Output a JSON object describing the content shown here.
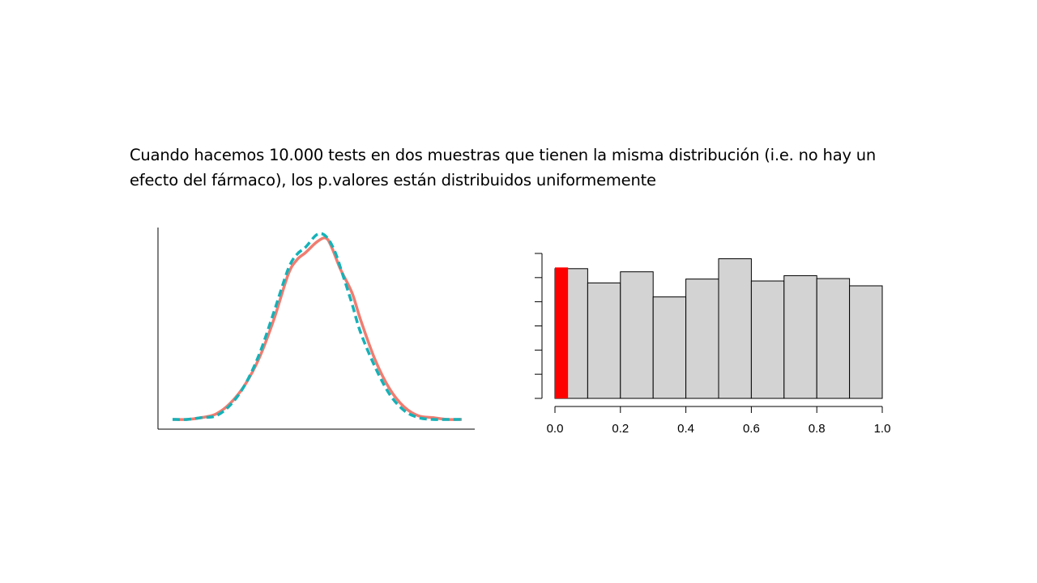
{
  "slide": {
    "caption": "Cuando hacemos 10.000 tests en dos muestras que tienen la misma distribución (i.e. no hay un efecto del fármaco), los p.valores están distribuidos uniformemente"
  },
  "chart_data": [
    {
      "type": "line",
      "title": "",
      "xlabel": "",
      "ylabel": "",
      "axes_ticks": false,
      "x_range": [
        0,
        1
      ],
      "y_range": [
        0,
        1
      ],
      "series": [
        {
          "color": "#f07c70",
          "style": "solid",
          "x": [
            0.0,
            0.05,
            0.1,
            0.15,
            0.2,
            0.25,
            0.3,
            0.35,
            0.4,
            0.43,
            0.46,
            0.5,
            0.53,
            0.55,
            0.58,
            0.62,
            0.65,
            0.7,
            0.75,
            0.8,
            0.85,
            0.9,
            0.95,
            1.0
          ],
          "y": [
            0.0,
            0.0,
            0.01,
            0.03,
            0.09,
            0.19,
            0.34,
            0.55,
            0.8,
            0.88,
            0.92,
            0.98,
            1.0,
            0.95,
            0.83,
            0.7,
            0.55,
            0.33,
            0.17,
            0.07,
            0.02,
            0.01,
            0.0,
            0.0
          ]
        },
        {
          "color": "#14b2b8",
          "style": "dashed",
          "x": [
            0.0,
            0.05,
            0.1,
            0.15,
            0.2,
            0.25,
            0.3,
            0.35,
            0.4,
            0.43,
            0.46,
            0.5,
            0.53,
            0.56,
            0.59,
            0.62,
            0.65,
            0.7,
            0.75,
            0.8,
            0.85,
            0.9,
            0.95,
            1.0
          ],
          "y": [
            0.0,
            0.0,
            0.01,
            0.02,
            0.08,
            0.19,
            0.36,
            0.59,
            0.83,
            0.91,
            0.95,
            1.02,
            1.01,
            0.93,
            0.79,
            0.64,
            0.48,
            0.29,
            0.14,
            0.05,
            0.01,
            0.0,
            0.0,
            0.0
          ]
        }
      ]
    },
    {
      "type": "bar",
      "title": "",
      "xlabel": "",
      "ylabel": "",
      "xlim": [
        0,
        1
      ],
      "ylim": [
        0,
        600
      ],
      "x_ticks": [
        "0.0",
        "0.2",
        "0.4",
        "0.6",
        "0.8",
        "1.0"
      ],
      "y_tick_count": 7,
      "y_tick_labels_shown": false,
      "bin_edges": [
        0.0,
        0.1,
        0.2,
        0.3,
        0.4,
        0.5,
        0.6,
        0.7,
        0.8,
        0.9,
        1.0
      ],
      "values": [
        537,
        478,
        524,
        420,
        494,
        578,
        486,
        508,
        496,
        466
      ],
      "bar_color": "#d3d3d3",
      "highlight": {
        "x_range": [
          0.0,
          0.04
        ],
        "value": 542,
        "color": "#ff0000"
      }
    }
  ]
}
